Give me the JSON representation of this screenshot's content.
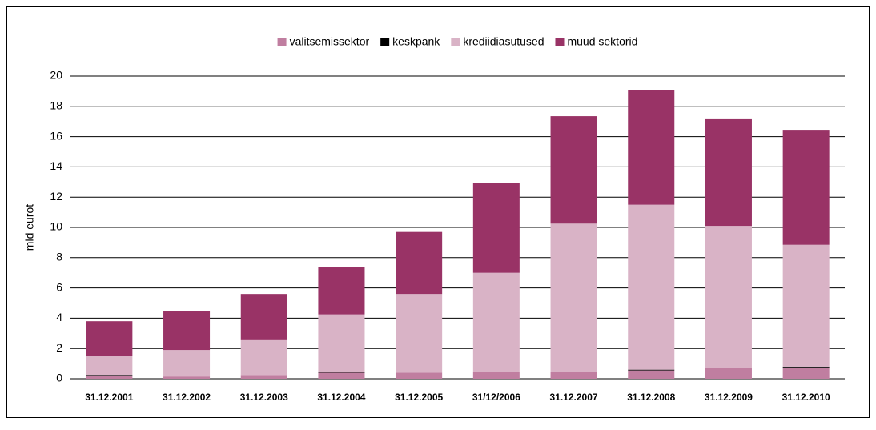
{
  "chart_data": {
    "type": "stacked_bar",
    "y_label": "mld eurot",
    "categories": [
      "31.12.2001",
      "31.12.2002",
      "31.12.2003",
      "31.12.2004",
      "31.12.2005",
      "31/12/2006",
      "31.12.2007",
      "31.12.2008",
      "31.12.2009",
      "31.12.2010"
    ],
    "series": [
      {
        "name": "valitsemissektor",
        "color": "#c07ea0",
        "values": [
          0.2,
          0.15,
          0.25,
          0.4,
          0.4,
          0.45,
          0.45,
          0.55,
          0.7,
          0.75
        ]
      },
      {
        "name": "keskpank",
        "color": "#000000",
        "values": [
          0.05,
          0,
          0,
          0.05,
          0,
          0,
          0,
          0.05,
          0,
          0.05
        ]
      },
      {
        "name": "krediidiasutused",
        "color": "#d9b3c6",
        "values": [
          1.25,
          1.75,
          2.35,
          3.8,
          5.2,
          6.55,
          9.8,
          10.9,
          9.4,
          8.05
        ]
      },
      {
        "name": "muud sektorid",
        "color": "#993366",
        "values": [
          2.3,
          2.55,
          3.0,
          3.15,
          4.1,
          5.95,
          7.1,
          7.6,
          7.1,
          7.6
        ]
      }
    ],
    "ylim": [
      0,
      20
    ],
    "yticks": [
      0,
      2,
      4,
      6,
      8,
      10,
      12,
      14,
      16,
      18,
      20
    ],
    "grid": true,
    "legend": "top"
  }
}
